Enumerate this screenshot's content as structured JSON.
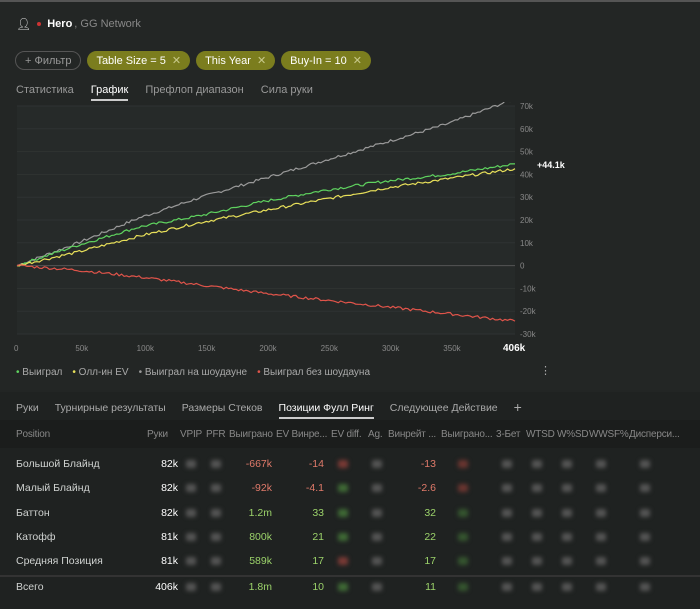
{
  "header": {
    "hero": "Hero",
    "network": ", GG Network"
  },
  "filters": {
    "add": "+ Фильтр",
    "chips": [
      "Table Size = 5",
      "This Year",
      "Buy-In = 10"
    ]
  },
  "tabs": [
    "Статистика",
    "График",
    "Префлоп диапазон",
    "Сила руки"
  ],
  "legend": [
    "Выиграл",
    "Олл-ин EV",
    "Выиграл на шоудауне",
    "Выиграл без шоудауна"
  ],
  "chart_data": {
    "type": "line",
    "xlim": [
      0,
      406000
    ],
    "ylim": [
      -30000,
      70000
    ],
    "x_ticks": [
      "0",
      "50k",
      "100k",
      "150k",
      "200k",
      "250k",
      "300k",
      "350k",
      "406k"
    ],
    "y_ticks": [
      "70k",
      "60k",
      "50k",
      "40k",
      "30k",
      "20k",
      "10k",
      "0",
      "-10k",
      "-20k",
      "-30k"
    ],
    "end_label": "+44.1k",
    "x": [
      0,
      50000,
      100000,
      150000,
      200000,
      250000,
      300000,
      350000,
      406000
    ],
    "series": [
      {
        "name": "Выиграл на шоудауне",
        "color": "#9a9a9a",
        "values": [
          0,
          10000,
          21000,
          30000,
          38000,
          46000,
          54000,
          62000,
          72000
        ]
      },
      {
        "name": "Выиграл",
        "color": "#5fd35f",
        "values": [
          0,
          9000,
          17000,
          22000,
          28000,
          33000,
          37000,
          40000,
          44100
        ]
      },
      {
        "name": "Олл-ин EV",
        "color": "#e8e05a",
        "values": [
          0,
          6000,
          13000,
          19000,
          24000,
          29000,
          34000,
          38000,
          42000
        ]
      },
      {
        "name": "Выиграл без шоудауна",
        "color": "#e0544a",
        "values": [
          0,
          -2000,
          -5000,
          -8500,
          -12000,
          -15000,
          -18000,
          -21000,
          -24000
        ]
      }
    ]
  },
  "bottom_tabs": [
    "Руки",
    "Турнирные результаты",
    "Размеры Стеков",
    "Позиции Фулл Ринг",
    "Следующее Действие",
    "+"
  ],
  "columns": [
    "Position",
    "Руки",
    "VPIP",
    "PFR",
    "Выиграно",
    "EV Винре...",
    "EV diff.",
    "Ag.",
    "Винрейт ...",
    "Выиграно...",
    "3-Бет",
    "WTSD",
    "W%SD",
    "WWSF%",
    "Дисперси..."
  ],
  "rows": [
    {
      "pos": "Большой Блайнд",
      "hands": "82k",
      "won": "-667k",
      "ev": "-14",
      "wr": "-13",
      "neg": true
    },
    {
      "pos": "Малый Блайнд",
      "hands": "82k",
      "won": "-92k",
      "ev": "-4.1",
      "wr": "-2.6",
      "neg": true
    },
    {
      "pos": "Баттон",
      "hands": "82k",
      "won": "1.2m",
      "ev": "33",
      "wr": "32",
      "neg": false
    },
    {
      "pos": "Катофф",
      "hands": "81k",
      "won": "800k",
      "ev": "21",
      "wr": "22",
      "neg": false
    },
    {
      "pos": "Средняя Позиция",
      "hands": "81k",
      "won": "589k",
      "ev": "17",
      "wr": "17",
      "neg": false
    },
    {
      "pos": "Всего",
      "hands": "406k",
      "won": "1.8m",
      "ev": "10",
      "wr": "11",
      "neg": false
    }
  ]
}
